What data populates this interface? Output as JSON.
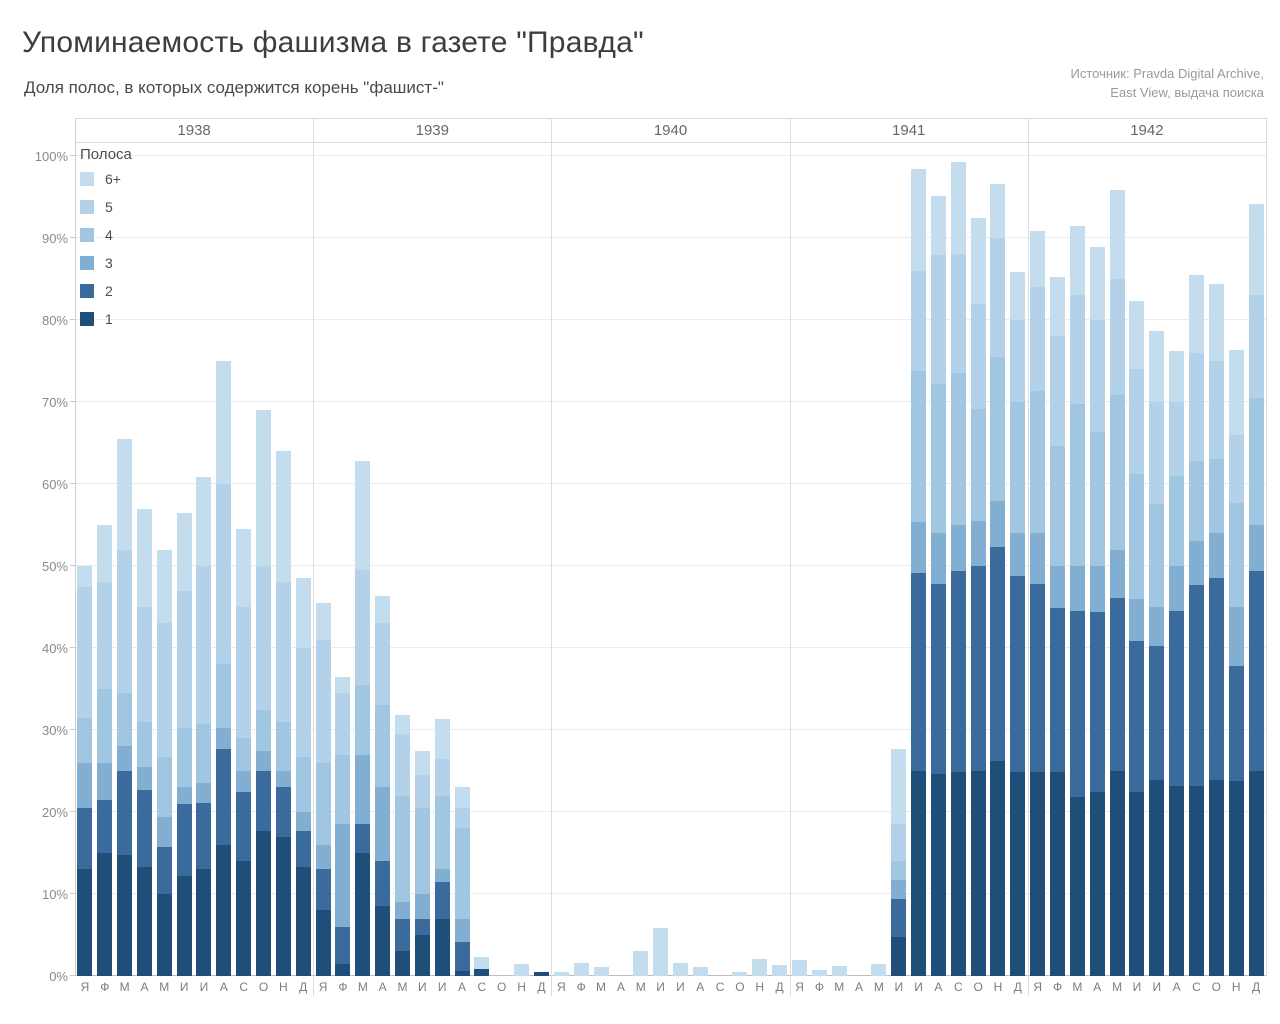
{
  "title": "Упоминаемость фашизма в газете \"Правда\"",
  "subtitle": "Доля полос, в которых содержится корень \"фашист-\"",
  "source": {
    "line1": "Источник: Pravda Digital Archive,",
    "line2": "East View, выдача поиска"
  },
  "legend": {
    "title": "Полоса",
    "items": [
      {
        "label": "6+",
        "color": "#c3dcee"
      },
      {
        "label": "5",
        "color": "#b3d2e9"
      },
      {
        "label": "4",
        "color": "#a0c6e1"
      },
      {
        "label": "3",
        "color": "#82afd1"
      },
      {
        "label": "2",
        "color": "#3a6b9c"
      },
      {
        "label": "1",
        "color": "#1f4e79"
      }
    ]
  },
  "chart_data": {
    "type": "bar",
    "stacked": true,
    "unit": "percent of pages",
    "ylim": [
      0,
      100
    ],
    "grid": true,
    "legend_position": "top-left-inside",
    "y_tick_labels": [
      "100%",
      "90%",
      "80%",
      "70%",
      "60%",
      "50%",
      "40%",
      "30%",
      "20%",
      "10%",
      "0%"
    ],
    "month_labels": [
      "Я",
      "Ф",
      "М",
      "А",
      "М",
      "И",
      "И",
      "А",
      "С",
      "О",
      "Н",
      "Д"
    ],
    "stack_order_bottom_to_top": [
      "1",
      "2",
      "3",
      "4",
      "5",
      "6+"
    ],
    "colors": {
      "1": "#1f4e79",
      "2": "#3a6b9c",
      "3": "#82afd1",
      "4": "#a0c6e1",
      "5": "#b3d2e9",
      "6+": "#c3dcee"
    },
    "years": [
      {
        "year": "1938",
        "values": [
          [
            13.0,
            7.5,
            5.5,
            5.5,
            16.0,
            2.5
          ],
          [
            15.0,
            6.5,
            4.5,
            9.0,
            13.0,
            7.0
          ],
          [
            14.8,
            10.2,
            3.0,
            6.5,
            17.5,
            13.5
          ],
          [
            13.3,
            9.4,
            2.8,
            5.5,
            14.0,
            12.0
          ],
          [
            10.0,
            5.7,
            3.7,
            7.3,
            16.3,
            9.0
          ],
          [
            12.2,
            8.8,
            2.0,
            7.3,
            16.7,
            9.5
          ],
          [
            13.1,
            8.0,
            2.4,
            7.2,
            19.3,
            10.8
          ],
          [
            16.0,
            11.7,
            2.6,
            7.8,
            21.9,
            15.0
          ],
          [
            14.0,
            8.5,
            2.5,
            4.0,
            16.0,
            9.5
          ],
          [
            17.7,
            7.3,
            2.5,
            5.0,
            17.5,
            19.0
          ],
          [
            17.0,
            6.0,
            2.0,
            6.0,
            17.0,
            16.0
          ],
          [
            13.3,
            4.4,
            2.3,
            6.7,
            13.3,
            8.5
          ]
        ]
      },
      {
        "year": "1939",
        "values": [
          [
            8.0,
            5.0,
            3.0,
            10.0,
            15.0,
            4.5
          ],
          [
            1.5,
            4.5,
            12.5,
            8.5,
            7.5,
            2.0
          ],
          [
            15.0,
            3.5,
            8.5,
            8.5,
            14.0,
            13.3
          ],
          [
            8.5,
            5.5,
            9.0,
            10.0,
            10.0,
            3.3
          ],
          [
            3.0,
            4.0,
            2.0,
            13.0,
            7.5,
            2.3
          ],
          [
            5.0,
            2.0,
            3.0,
            10.5,
            4.0,
            3.0
          ],
          [
            7.0,
            4.5,
            1.5,
            9.0,
            4.5,
            4.8
          ],
          [
            0.6,
            3.5,
            2.9,
            11.0,
            2.5,
            2.5
          ],
          [
            0.8,
            0,
            0,
            0,
            0,
            1.5
          ],
          [
            0,
            0,
            0,
            0,
            0,
            0
          ],
          [
            0,
            0,
            0,
            0,
            0,
            1.5
          ],
          [
            0.5,
            0,
            0,
            0,
            0,
            0
          ]
        ]
      },
      {
        "year": "1940",
        "values": [
          [
            0,
            0,
            0,
            0,
            0,
            0.5
          ],
          [
            0,
            0,
            0,
            0,
            0,
            1.6
          ],
          [
            0,
            0,
            0,
            0,
            0,
            1.1
          ],
          [
            0,
            0,
            0,
            0,
            0,
            0
          ],
          [
            0,
            0,
            0,
            0,
            0,
            3.1
          ],
          [
            0,
            0,
            0,
            0,
            0,
            5.8
          ],
          [
            0,
            0,
            0,
            0,
            0,
            1.6
          ],
          [
            0,
            0,
            0,
            0,
            0,
            1.1
          ],
          [
            0,
            0,
            0,
            0,
            0,
            0
          ],
          [
            0,
            0,
            0,
            0,
            0,
            0.5
          ],
          [
            0,
            0,
            0,
            0,
            0,
            2.1
          ],
          [
            0,
            0,
            0,
            0,
            0,
            1.3
          ]
        ]
      },
      {
        "year": "1941",
        "values": [
          [
            0,
            0,
            0,
            0,
            0,
            2.0
          ],
          [
            0,
            0,
            0,
            0,
            0,
            0.7
          ],
          [
            0,
            0,
            0,
            0,
            0,
            1.2
          ],
          [
            0,
            0,
            0,
            0,
            0,
            0
          ],
          [
            0,
            0,
            0,
            0,
            0,
            1.5
          ],
          [
            4.8,
            4.6,
            2.3,
            2.3,
            4.5,
            9.2
          ],
          [
            25.0,
            24.2,
            6.2,
            18.4,
            12.2,
            12.4
          ],
          [
            24.6,
            23.2,
            6.2,
            18.2,
            15.8,
            7.2
          ],
          [
            24.9,
            24.5,
            5.6,
            18.6,
            14.4,
            11.3
          ],
          [
            25.0,
            25.0,
            5.5,
            13.6,
            12.9,
            10.5
          ],
          [
            26.2,
            26.1,
            5.7,
            17.5,
            14.5,
            6.6
          ],
          [
            24.9,
            23.9,
            5.2,
            16.0,
            10.0,
            5.8
          ]
        ]
      },
      {
        "year": "1942",
        "values": [
          [
            24.9,
            22.9,
            6.2,
            17.4,
            12.6,
            6.8
          ],
          [
            24.9,
            20.0,
            5.1,
            14.7,
            13.3,
            7.2
          ],
          [
            21.8,
            22.7,
            5.5,
            19.8,
            13.2,
            8.5
          ],
          [
            22.4,
            22.0,
            5.6,
            16.3,
            13.7,
            8.9
          ],
          [
            25.0,
            21.1,
            5.9,
            18.8,
            14.2,
            10.9
          ],
          [
            22.4,
            18.5,
            5.1,
            15.2,
            12.8,
            8.3
          ],
          [
            23.9,
            16.4,
            4.7,
            12.6,
            12.4,
            8.7
          ],
          [
            23.2,
            21.3,
            5.5,
            11.0,
            9.0,
            6.2
          ],
          [
            23.2,
            24.5,
            5.3,
            9.8,
            13.2,
            9.5
          ],
          [
            23.9,
            24.7,
            5.4,
            9.1,
            11.9,
            9.4
          ],
          [
            23.8,
            14.0,
            7.2,
            12.7,
            8.3,
            10.3
          ],
          [
            25.0,
            24.4,
            5.6,
            15.5,
            12.5,
            11.2
          ]
        ]
      }
    ]
  }
}
